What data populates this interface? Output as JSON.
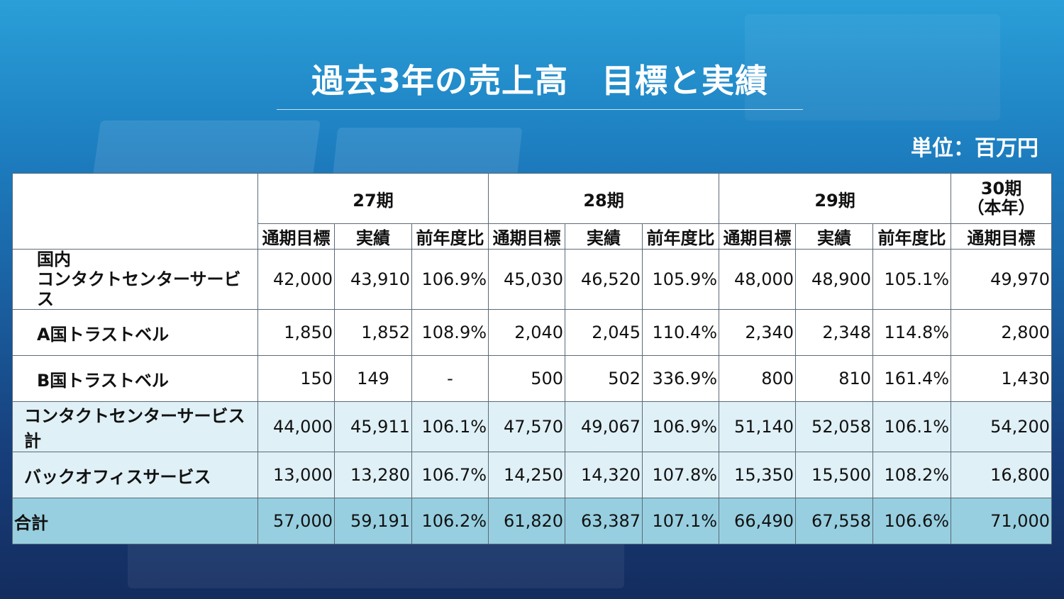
{
  "title": "過去3年の売上高　目標と実績",
  "unit": "単位：百万円",
  "periods": {
    "p27": "27期",
    "p28": "28期",
    "p29": "29期",
    "p30_line1": "30期",
    "p30_line2": "（本年）"
  },
  "subheaders": {
    "target": "通期目標",
    "actual": "実績",
    "yoy": "前年度比"
  },
  "rows": [
    {
      "label_line1": "国内",
      "label_line2": "コンタクトセンターサービス",
      "values": [
        "42,000",
        "43,910",
        "106.9%",
        "45,030",
        "46,520",
        "105.9%",
        "48,000",
        "48,900",
        "105.1%",
        "49,970"
      ]
    },
    {
      "label": "A国トラストベル",
      "values": [
        "1,850",
        "1,852",
        "108.9%",
        "2,040",
        "2,045",
        "110.4%",
        "2,340",
        "2,348",
        "114.8%",
        "2,800"
      ]
    },
    {
      "label": "B国トラストベル",
      "values": [
        "150",
        "149",
        "-",
        "500",
        "502",
        "336.9%",
        "800",
        "810",
        "161.4%",
        "1,430"
      ]
    },
    {
      "label": "コンタクトセンターサービス計",
      "values": [
        "44,000",
        "45,911",
        "106.1%",
        "47,570",
        "49,067",
        "106.9%",
        "51,140",
        "52,058",
        "106.1%",
        "54,200"
      ]
    },
    {
      "label": "バックオフィスサービス",
      "values": [
        "13,000",
        "13,280",
        "106.7%",
        "14,250",
        "14,320",
        "107.8%",
        "15,350",
        "15,500",
        "108.2%",
        "16,800"
      ]
    },
    {
      "label": "合計",
      "values": [
        "57,000",
        "59,191",
        "106.2%",
        "61,820",
        "63,387",
        "107.1%",
        "66,490",
        "67,558",
        "106.6%",
        "71,000"
      ]
    }
  ]
}
